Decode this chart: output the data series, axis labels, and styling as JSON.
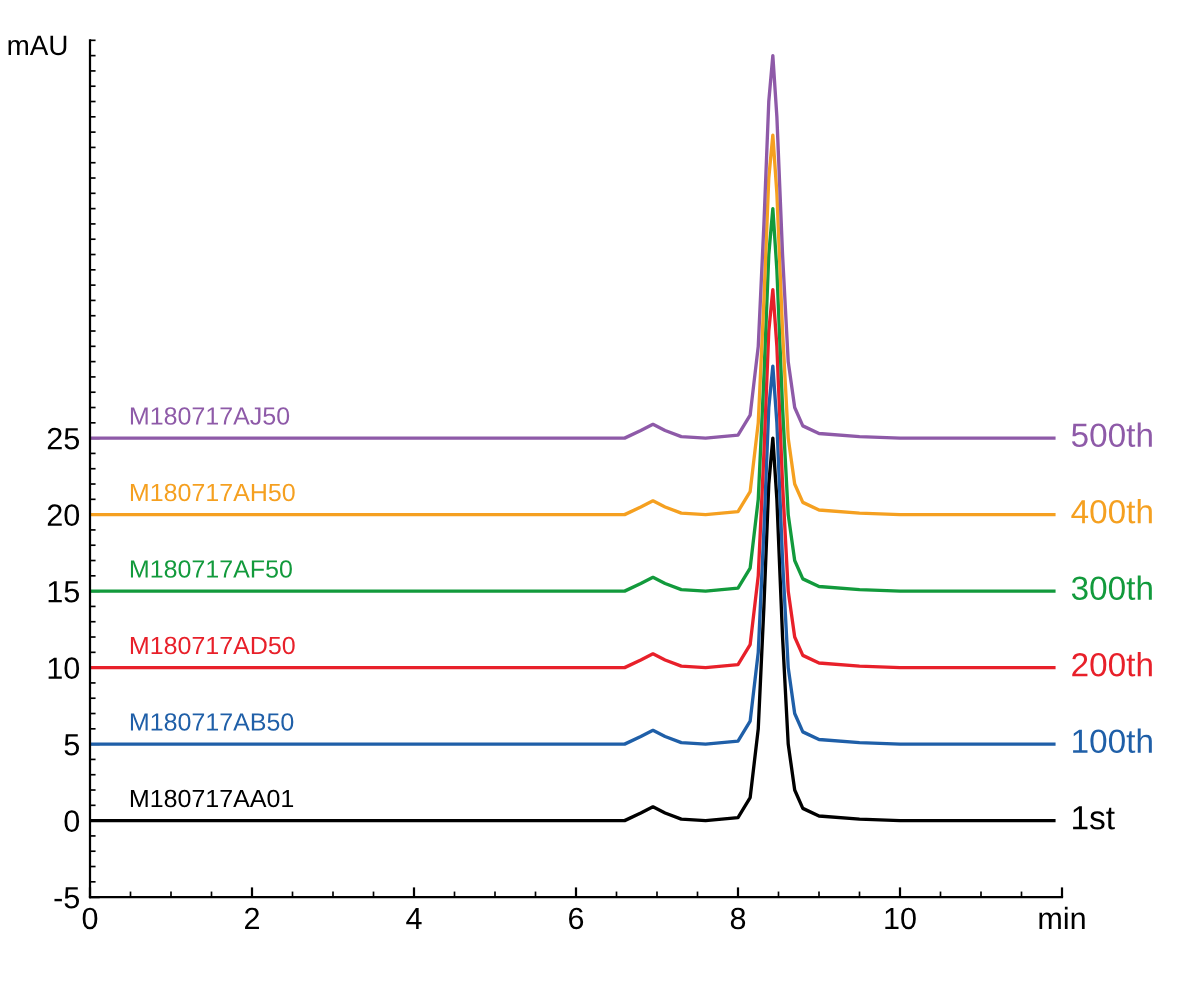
{
  "chart_data": {
    "type": "line",
    "ylabel": "mAU",
    "x": [
      0,
      1,
      2,
      3,
      4,
      5,
      6,
      6.6,
      6.8,
      6.95,
      7.1,
      7.3,
      7.6,
      8.0,
      8.15,
      8.25,
      8.32,
      8.38,
      8.43,
      8.48,
      8.55,
      8.62,
      8.7,
      8.8,
      9.0,
      9.5,
      10,
      11,
      11.9
    ],
    "series": [
      {
        "name": "1st",
        "color": "#000000",
        "values": [
          0,
          0,
          0,
          0,
          0,
          0,
          0,
          0,
          0.5,
          0.9,
          0.5,
          0.1,
          0,
          0.2,
          1.5,
          6,
          14,
          22,
          25,
          21,
          12,
          5,
          2,
          0.8,
          0.3,
          0.1,
          0,
          0,
          0
        ]
      },
      {
        "name": "100th",
        "color": "#1f5fa8",
        "values": [
          5,
          5,
          5,
          5,
          5,
          5,
          5,
          5,
          5.5,
          5.9,
          5.5,
          5.1,
          5,
          5.2,
          6.5,
          11,
          19,
          27,
          29.7,
          26,
          17,
          10,
          7,
          5.8,
          5.3,
          5.1,
          5,
          5,
          5
        ]
      },
      {
        "name": "200th",
        "color": "#e8202a",
        "values": [
          10,
          10,
          10,
          10,
          10,
          10,
          10,
          10,
          10.5,
          10.9,
          10.5,
          10.1,
          10,
          10.2,
          11.5,
          16,
          24,
          32,
          34.7,
          31,
          22,
          15,
          12,
          10.8,
          10.3,
          10.1,
          10,
          10,
          10
        ]
      },
      {
        "name": "300th",
        "color": "#129a3c",
        "values": [
          15,
          15,
          15,
          15,
          15,
          15,
          15,
          15,
          15.5,
          15.9,
          15.5,
          15.1,
          15,
          15.2,
          16.5,
          21,
          29,
          37,
          40,
          36,
          27,
          20,
          17,
          15.8,
          15.3,
          15.1,
          15,
          15,
          15
        ]
      },
      {
        "name": "400th",
        "color": "#f5a020",
        "values": [
          20,
          20,
          20,
          20,
          20,
          20,
          20,
          20,
          20.5,
          20.9,
          20.5,
          20.1,
          20,
          20.2,
          21.5,
          26,
          34,
          42,
          44.8,
          41,
          32,
          25,
          22,
          20.8,
          20.3,
          20.1,
          20,
          20,
          20
        ]
      },
      {
        "name": "500th",
        "color": "#8e5aa8",
        "values": [
          25,
          25,
          25,
          25,
          25,
          25,
          25,
          25,
          25.5,
          25.9,
          25.5,
          25.1,
          25,
          25.2,
          26.5,
          31,
          39,
          47,
          50,
          46,
          37,
          30,
          27,
          25.8,
          25.3,
          25.1,
          25,
          25,
          25
        ]
      }
    ],
    "annotations": [
      "M180717AA01",
      "M180717AB50",
      "M180717AD50",
      "M180717AF50",
      "M180717AH50",
      "M180717AJ50"
    ],
    "xlim": [
      0,
      12
    ],
    "xticks": [
      0,
      2,
      4,
      6,
      8,
      10,
      {
        "value": 12,
        "label": "min"
      }
    ],
    "ylim": [
      -5,
      51
    ],
    "yticks": [
      -5,
      0,
      5,
      10,
      15,
      20,
      25
    ],
    "grid": false,
    "legend": false,
    "marker": "none",
    "line_style": "solid"
  }
}
